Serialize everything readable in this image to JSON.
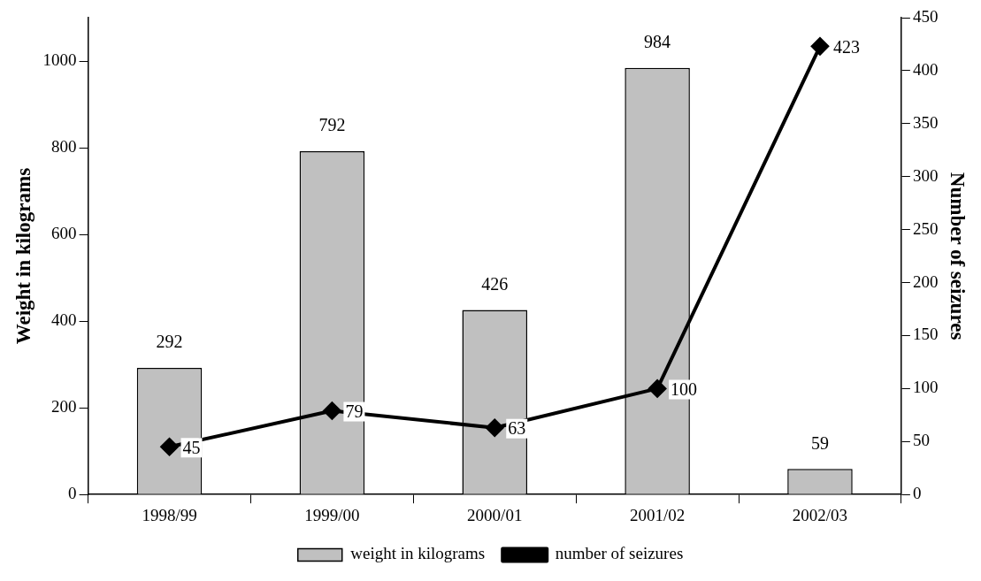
{
  "chart_data": {
    "type": "bar",
    "ylabel": "Weight in kilograms",
    "y2label": "Number of seizures",
    "categories": [
      "1998/99",
      "1999/00",
      "2000/01",
      "2001/02",
      "2002/03"
    ],
    "series": [
      {
        "name": "weight in kilograms",
        "color": "#c0c0c0",
        "values": [
          292,
          792,
          426,
          984,
          59
        ]
      },
      {
        "name": "number of seizures",
        "type": "line",
        "axis": "y2",
        "color": "#000000",
        "marker": "diamond",
        "values": [
          45,
          79,
          63,
          100,
          423
        ]
      }
    ],
    "ylim": [
      0,
      1100
    ],
    "yticks": [
      0,
      200,
      400,
      600,
      800,
      1000
    ],
    "y2lim": [
      0,
      450
    ],
    "y2ticks": [
      0,
      50,
      100,
      150,
      200,
      250,
      300,
      350,
      400,
      450
    ],
    "data_labels": true,
    "grid": false,
    "legend": "bottom"
  }
}
